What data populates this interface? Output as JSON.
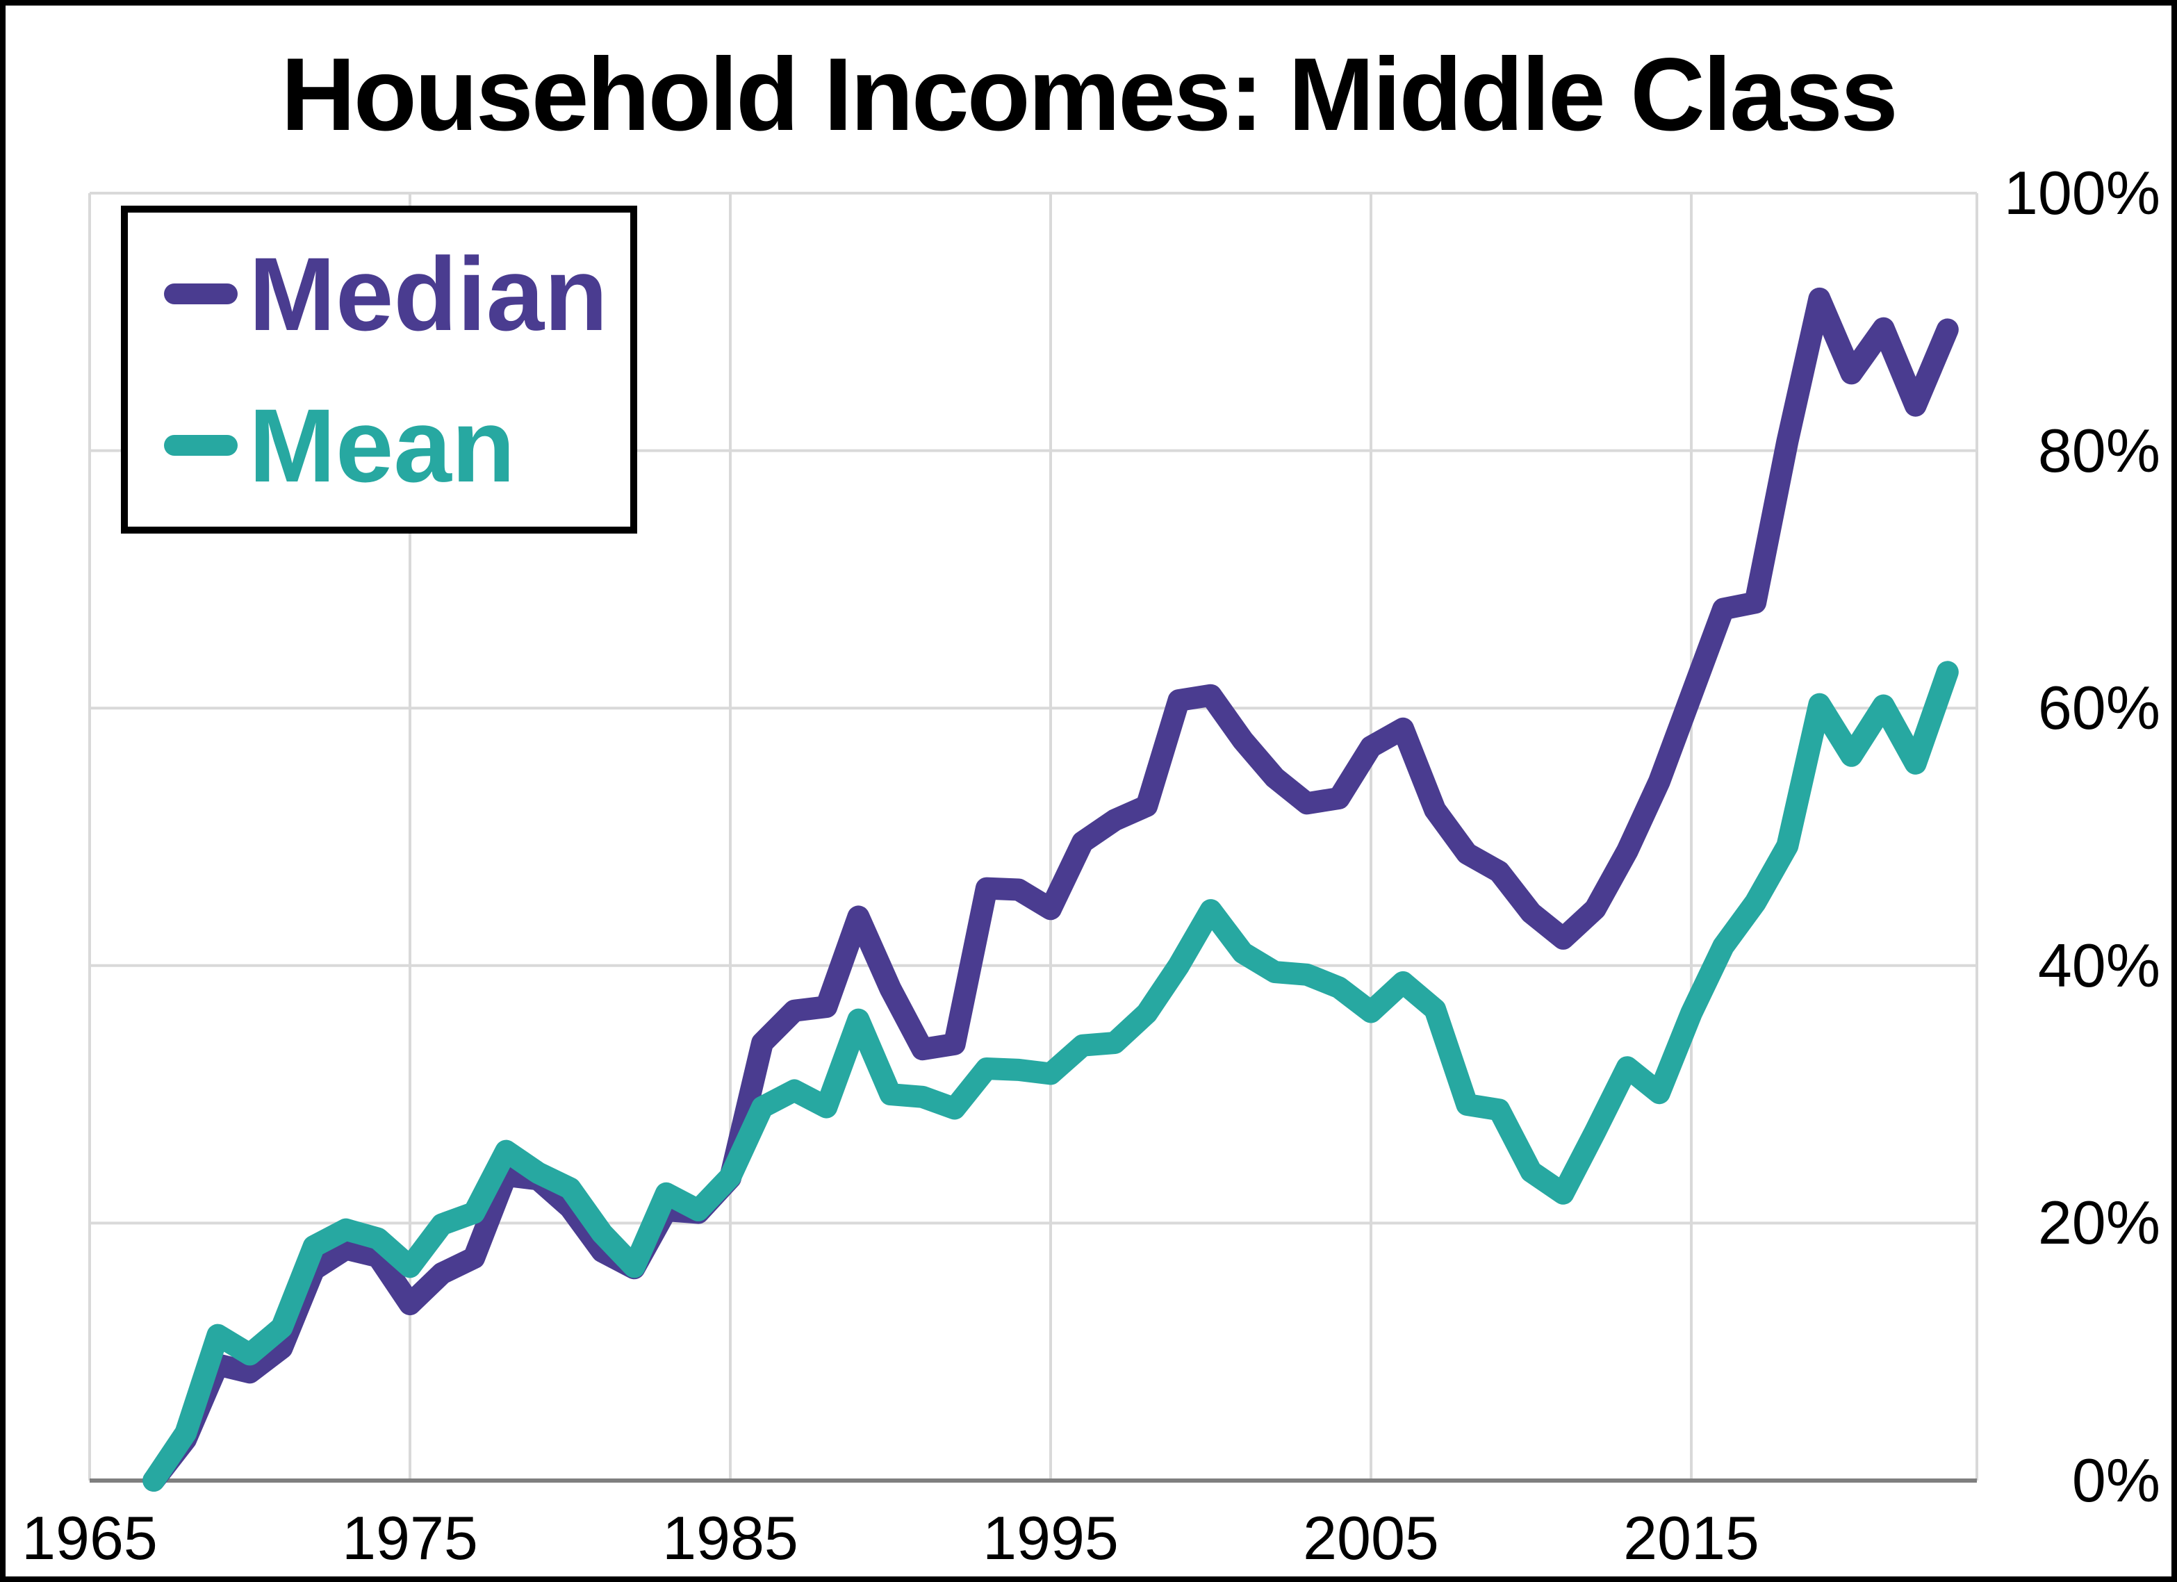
{
  "title": "Household Incomes: Middle Class",
  "legend": {
    "items": [
      {
        "label": "Median",
        "color": "#4a3c90"
      },
      {
        "label": "Mean",
        "color": "#27a8a1"
      }
    ]
  },
  "colors": {
    "background": "#ffffff",
    "frame_border": "#000000",
    "gridline": "#d9d9d9",
    "axis_line": "#7f7f7f",
    "median_line": "#4a3c90",
    "mean_line": "#27a8a1"
  },
  "chart_data": {
    "type": "line",
    "title": "Household Incomes: Middle Class",
    "xlabel": "",
    "ylabel": "",
    "grid": true,
    "legend_position": "top-left",
    "xlim": [
      1965,
      2023.9
    ],
    "ylim": [
      0,
      100
    ],
    "x_ticks": [
      1965,
      1975,
      1985,
      1995,
      2005,
      2015
    ],
    "y_ticks": [
      {
        "value": 0,
        "label": "0%"
      },
      {
        "value": 20,
        "label": "20%"
      },
      {
        "value": 40,
        "label": "40%"
      },
      {
        "value": 60,
        "label": "60%"
      },
      {
        "value": 80,
        "label": "80%"
      },
      {
        "value": 100,
        "label": "100%"
      }
    ],
    "x": [
      1967,
      1968,
      1969,
      1970,
      1971,
      1972,
      1973,
      1974,
      1975,
      1976,
      1977,
      1978,
      1979,
      1980,
      1981,
      1982,
      1983,
      1984,
      1985,
      1986,
      1987,
      1988,
      1989,
      1990,
      1991,
      1992,
      1993,
      1994,
      1995,
      1996,
      1997,
      1998,
      1999,
      2000,
      2001,
      2002,
      2003,
      2004,
      2005,
      2006,
      2007,
      2008,
      2009,
      2010,
      2011,
      2012,
      2013,
      2014,
      2015,
      2016,
      2017,
      2018,
      2019,
      2020,
      2021,
      2022,
      2023
    ],
    "series": [
      {
        "name": "Median",
        "color": "#4a3c90",
        "values": [
          0,
          3.2,
          9.0,
          8.4,
          10.3,
          16.4,
          18.0,
          17.4,
          13.7,
          16.1,
          17.3,
          23.7,
          23.4,
          21.2,
          17.8,
          16.5,
          21.0,
          20.8,
          23.5,
          34.0,
          36.5,
          36.8,
          43.8,
          38.2,
          33.5,
          33.9,
          46.0,
          45.9,
          44.4,
          49.6,
          51.3,
          52.4,
          60.6,
          61.0,
          57.5,
          54.6,
          52.6,
          53.0,
          57.0,
          58.4,
          52.1,
          48.7,
          47.3,
          44.1,
          42.1,
          44.4,
          48.9,
          54.3,
          61.0,
          67.7,
          68.2,
          80.7,
          91.8,
          86.0,
          89.5,
          83.5,
          89.4
        ]
      },
      {
        "name": "Mean",
        "color": "#27a8a1",
        "values": [
          0,
          3.7,
          11.3,
          9.8,
          11.9,
          18.2,
          19.5,
          18.8,
          16.6,
          19.9,
          20.8,
          25.6,
          23.9,
          22.7,
          19.2,
          16.6,
          22.3,
          21.0,
          23.6,
          29.0,
          30.3,
          29.0,
          35.8,
          30.0,
          29.8,
          28.9,
          32.0,
          31.9,
          31.6,
          33.8,
          34.0,
          36.3,
          40.0,
          44.3,
          41.0,
          39.5,
          39.3,
          38.3,
          36.4,
          38.7,
          36.6,
          29.2,
          28.8,
          24.0,
          22.3,
          27.1,
          32.1,
          30.1,
          36.3,
          41.5,
          44.9,
          49.3,
          60.3,
          56.3,
          60.2,
          55.7,
          62.8
        ]
      }
    ]
  }
}
